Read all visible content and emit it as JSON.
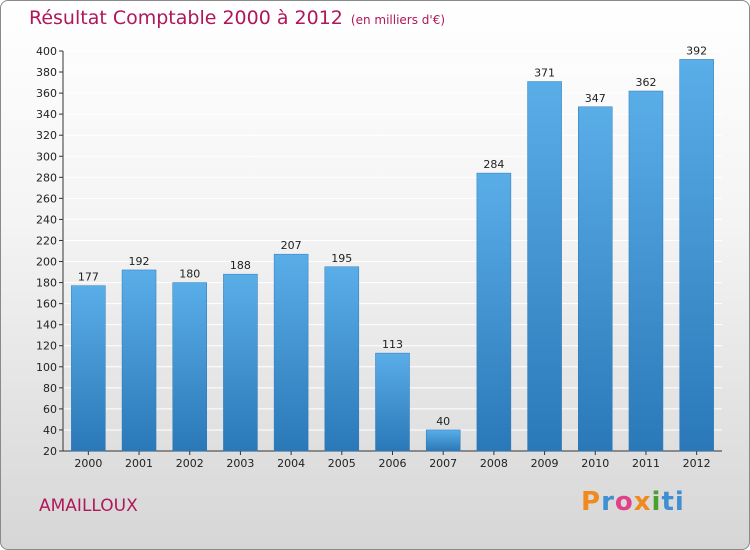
{
  "header": {
    "title": "Résultat Comptable 2000 à 2012",
    "subtitle": "(en milliers d'€)"
  },
  "location": "AMAILLOUX",
  "logo": {
    "text": [
      "P",
      "r",
      "o",
      "x",
      "i",
      "ti"
    ]
  },
  "colors": {
    "title": "#b0175a",
    "bar_top": "#5aaee8",
    "bar_bottom": "#2a78b8",
    "grid": "#ffffff"
  },
  "chart_data": {
    "type": "bar",
    "title": "Résultat Comptable 2000 à 2012",
    "xlabel": "",
    "ylabel": "en milliers d'€",
    "categories": [
      "2000",
      "2001",
      "2002",
      "2003",
      "2004",
      "2005",
      "2006",
      "2007",
      "2008",
      "2009",
      "2010",
      "2011",
      "2012"
    ],
    "values": [
      177,
      192,
      180,
      188,
      207,
      195,
      113,
      40,
      284,
      371,
      347,
      362,
      392
    ],
    "ylim": [
      20,
      400
    ],
    "yticks": [
      20,
      40,
      60,
      80,
      100,
      120,
      140,
      160,
      180,
      200,
      220,
      240,
      260,
      280,
      300,
      320,
      340,
      360,
      380,
      400
    ],
    "grid": true
  }
}
